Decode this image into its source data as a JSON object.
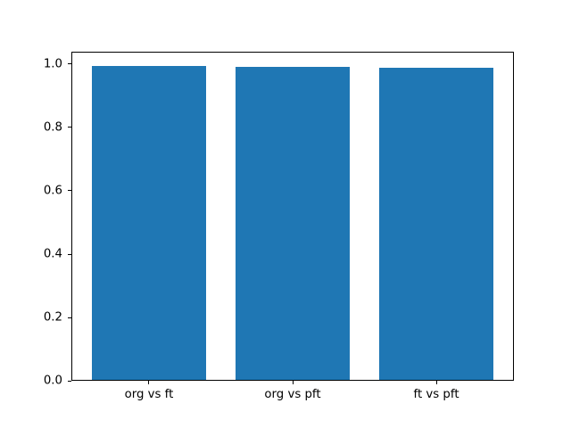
{
  "figure": {
    "background_color": "#ffffff",
    "spine_color": "#000000",
    "tick_color": "#000000"
  },
  "chart_data": {
    "type": "bar",
    "title": "",
    "xlabel": "",
    "ylabel": "",
    "categories": [
      "org vs ft",
      "org vs pft",
      "ft vs pft"
    ],
    "values": [
      0.993,
      0.992,
      0.989
    ],
    "bar_color": "#1f77b4",
    "bar_width_fraction": 0.8,
    "ylim": [
      0,
      1.04
    ],
    "xlim": [
      -0.54,
      2.54
    ],
    "yticks": [
      0.0,
      0.2,
      0.4,
      0.6,
      0.8,
      1.0
    ],
    "ytick_labels": [
      "0.0",
      "0.2",
      "0.4",
      "0.6",
      "0.8",
      "1.0"
    ],
    "grid": false,
    "legend": null
  }
}
